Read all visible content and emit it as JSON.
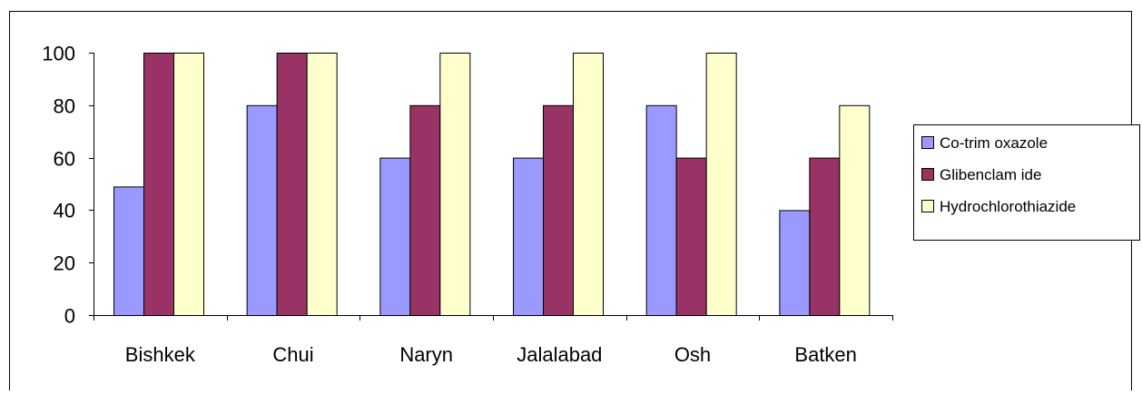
{
  "chart_data": {
    "type": "bar",
    "title": "",
    "xlabel": "",
    "ylabel": "",
    "categories": [
      "Bishkek",
      "Chui",
      "Naryn",
      "Jalalabad",
      "Osh",
      "Batken"
    ],
    "series": [
      {
        "name": "Co-trim oxazole",
        "color": "#9999ff",
        "values": [
          49,
          80,
          60,
          60,
          80,
          40
        ]
      },
      {
        "name": "Glibenclam ide",
        "color": "#993366",
        "values": [
          100,
          100,
          80,
          80,
          60,
          60
        ]
      },
      {
        "name": "Hydrochlorothiazide",
        "color": "#ffffcc",
        "values": [
          100,
          100,
          100,
          100,
          100,
          80
        ]
      }
    ],
    "ylim": [
      0,
      100
    ],
    "yticks": [
      0,
      20,
      40,
      60,
      80,
      100
    ],
    "grid": false,
    "legend_position": "right"
  }
}
